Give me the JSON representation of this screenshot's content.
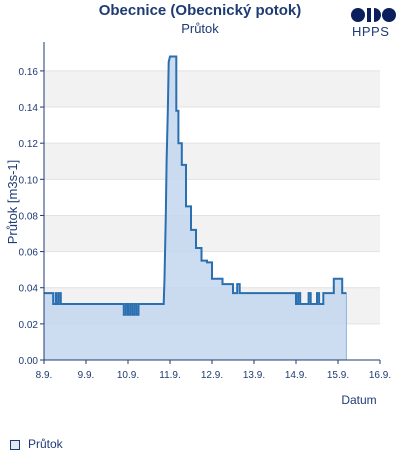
{
  "chart_data": {
    "type": "area",
    "title": "Obecnice (Obecnický potok)",
    "subtitle": "Průtok",
    "xlabel": "Datum",
    "ylabel": "Průtok [m3s-1]",
    "x_ticks": [
      "8.9.",
      "9.9.",
      "10.9.",
      "11.9.",
      "12.9.",
      "13.9.",
      "14.9.",
      "15.9.",
      "16.9."
    ],
    "y_ticks": [
      "0.00",
      "0.02",
      "0.04",
      "0.06",
      "0.08",
      "0.10",
      "0.12",
      "0.14",
      "0.16"
    ],
    "xlim": [
      0,
      8
    ],
    "ylim": [
      0,
      0.176
    ],
    "grid": "horizontal bands",
    "legend_position": "bottom-left",
    "series": [
      {
        "name": "Průtok",
        "color": "#2a6fb0",
        "fill": "#c3d7ee",
        "x": [
          0.0,
          0.22,
          0.22,
          0.28,
          0.28,
          0.3,
          0.3,
          0.35,
          0.35,
          0.4,
          0.4,
          0.45,
          0.45,
          1.9,
          1.9,
          1.95,
          1.95,
          2.0,
          2.0,
          2.05,
          2.05,
          2.1,
          2.1,
          2.15,
          2.15,
          2.2,
          2.2,
          2.25,
          2.25,
          2.85,
          2.87,
          2.9,
          2.92,
          2.95,
          2.97,
          3.0,
          3.05,
          3.15,
          3.15,
          3.2,
          3.2,
          3.28,
          3.28,
          3.38,
          3.38,
          3.5,
          3.5,
          3.62,
          3.62,
          3.75,
          3.75,
          3.88,
          3.88,
          4.0,
          4.0,
          4.25,
          4.25,
          4.5,
          4.5,
          4.6,
          4.6,
          4.66,
          4.66,
          4.75,
          4.75,
          6.0,
          6.0,
          6.05,
          6.05,
          6.1,
          6.1,
          6.3,
          6.3,
          6.35,
          6.35,
          6.5,
          6.5,
          6.55,
          6.55,
          6.65,
          6.65,
          6.9,
          6.9,
          7.1,
          7.1,
          7.15,
          7.15,
          7.2
        ],
        "y": [
          0.037,
          0.037,
          0.031,
          0.031,
          0.037,
          0.037,
          0.031,
          0.031,
          0.037,
          0.037,
          0.031,
          0.031,
          0.031,
          0.031,
          0.025,
          0.025,
          0.031,
          0.031,
          0.025,
          0.025,
          0.031,
          0.031,
          0.025,
          0.025,
          0.031,
          0.031,
          0.025,
          0.025,
          0.031,
          0.031,
          0.045,
          0.08,
          0.11,
          0.14,
          0.165,
          0.168,
          0.168,
          0.168,
          0.138,
          0.138,
          0.12,
          0.12,
          0.108,
          0.108,
          0.085,
          0.085,
          0.072,
          0.072,
          0.062,
          0.062,
          0.055,
          0.055,
          0.054,
          0.054,
          0.045,
          0.045,
          0.042,
          0.042,
          0.037,
          0.037,
          0.042,
          0.042,
          0.037,
          0.037,
          0.037,
          0.037,
          0.031,
          0.031,
          0.037,
          0.037,
          0.031,
          0.031,
          0.037,
          0.037,
          0.031,
          0.031,
          0.037,
          0.037,
          0.031,
          0.031,
          0.037,
          0.037,
          0.045,
          0.045,
          0.037,
          0.037,
          0.037,
          0.037
        ]
      }
    ]
  },
  "logo": {
    "text": "HPPS",
    "color": "#1f3b73"
  },
  "legend": {
    "label": "Průtok"
  }
}
